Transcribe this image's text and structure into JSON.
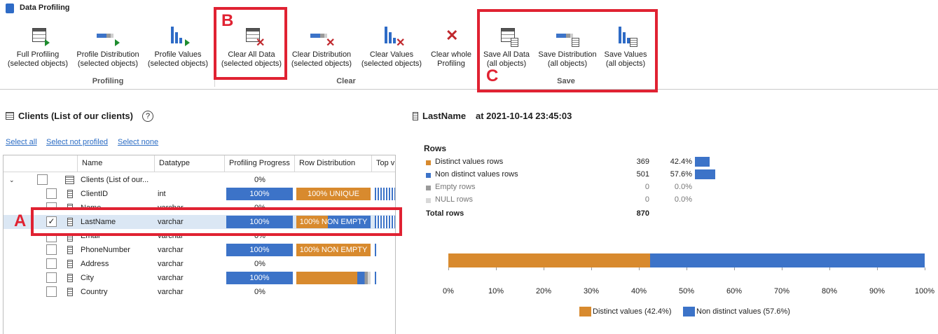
{
  "window": {
    "title": "Data Profiling"
  },
  "ribbon": {
    "profiling": {
      "label": "Profiling",
      "full": [
        "Full Profiling",
        "(selected objects)"
      ],
      "distribution": [
        "Profile Distribution",
        "(selected objects)"
      ],
      "values": [
        "Profile Values",
        "(selected objects)"
      ]
    },
    "clear": {
      "label": "Clear",
      "all": [
        "Clear All Data",
        "(selected objects)"
      ],
      "distribution": [
        "Clear Distribution",
        "(selected objects)"
      ],
      "values": [
        "Clear Values",
        "(selected objects)"
      ],
      "whole": [
        "Clear whole",
        "Profiling"
      ]
    },
    "save": {
      "label": "Save",
      "all": [
        "Save All Data",
        "(all objects)"
      ],
      "distribution": [
        "Save Distribution",
        "(all objects)"
      ],
      "values": [
        "Save Values",
        "(all objects)"
      ]
    }
  },
  "annotations": {
    "a": "A",
    "b": "B",
    "c": "C"
  },
  "left": {
    "title": "Clients (List of our clients)",
    "help": "?",
    "links": {
      "select_all": "Select all",
      "select_not_profiled": "Select not profiled",
      "select_none": "Select none"
    },
    "columns": [
      "Name",
      "Datatype",
      "Profiling Progress",
      "Row Distribution",
      "Top v"
    ],
    "table_row": {
      "name": "Clients (List of our...",
      "progress": "0%"
    },
    "rows": [
      {
        "name": "ClientID",
        "type": "int",
        "progress": "100%",
        "profiled": true,
        "dist_label": "100% UNIQUE",
        "checked": false
      },
      {
        "name": "Name",
        "type": "varchar",
        "progress": "0%",
        "profiled": false,
        "checked": false
      },
      {
        "name": "LastName",
        "type": "varchar",
        "progress": "100%",
        "profiled": true,
        "dist_label": "100% NON EMPTY",
        "checked": true,
        "check_mark": "✓"
      },
      {
        "name": "Email",
        "type": "varchar",
        "progress": "0%",
        "profiled": false,
        "checked": false
      },
      {
        "name": "PhoneNumber",
        "type": "varchar",
        "progress": "100%",
        "profiled": true,
        "dist_label": "100% NON EMPTY",
        "checked": false
      },
      {
        "name": "Address",
        "type": "varchar",
        "progress": "0%",
        "profiled": false,
        "checked": false
      },
      {
        "name": "City",
        "type": "varchar",
        "progress": "100%",
        "profiled": true,
        "checked": false
      },
      {
        "name": "Country",
        "type": "varchar",
        "progress": "0%",
        "profiled": false,
        "checked": false
      }
    ]
  },
  "right": {
    "column": "LastName",
    "timestamp": "at 2021-10-14 23:45:03",
    "rows_heading": "Rows",
    "stats": [
      {
        "label": "Distinct values rows",
        "count": "369",
        "pct": "42.4%",
        "color": "#d88a2e"
      },
      {
        "label": "Non distinct values rows",
        "count": "501",
        "pct": "57.6%",
        "color": "#3c73c8"
      },
      {
        "label": "Empty rows",
        "count": "0",
        "pct": "0.0%",
        "color": "#9a9a9a"
      },
      {
        "label": "NULL rows",
        "count": "0",
        "pct": "0.0%",
        "color": "#d8d8d8"
      }
    ],
    "total_label": "Total rows",
    "total": "870"
  },
  "chart_data": {
    "type": "bar",
    "orientation": "horizontal-stacked",
    "series": [
      {
        "name": "Distinct values (42.4%)",
        "values": [
          42.4
        ],
        "color": "#d88a2e"
      },
      {
        "name": "Non distinct values (57.6%)",
        "values": [
          57.6
        ],
        "color": "#3c73c8"
      }
    ],
    "xlim": [
      0,
      100
    ],
    "tick_labels": [
      "0%",
      "10%",
      "20%",
      "30%",
      "40%",
      "50%",
      "60%",
      "70%",
      "80%",
      "90%",
      "100%"
    ],
    "legend": "bottom"
  }
}
